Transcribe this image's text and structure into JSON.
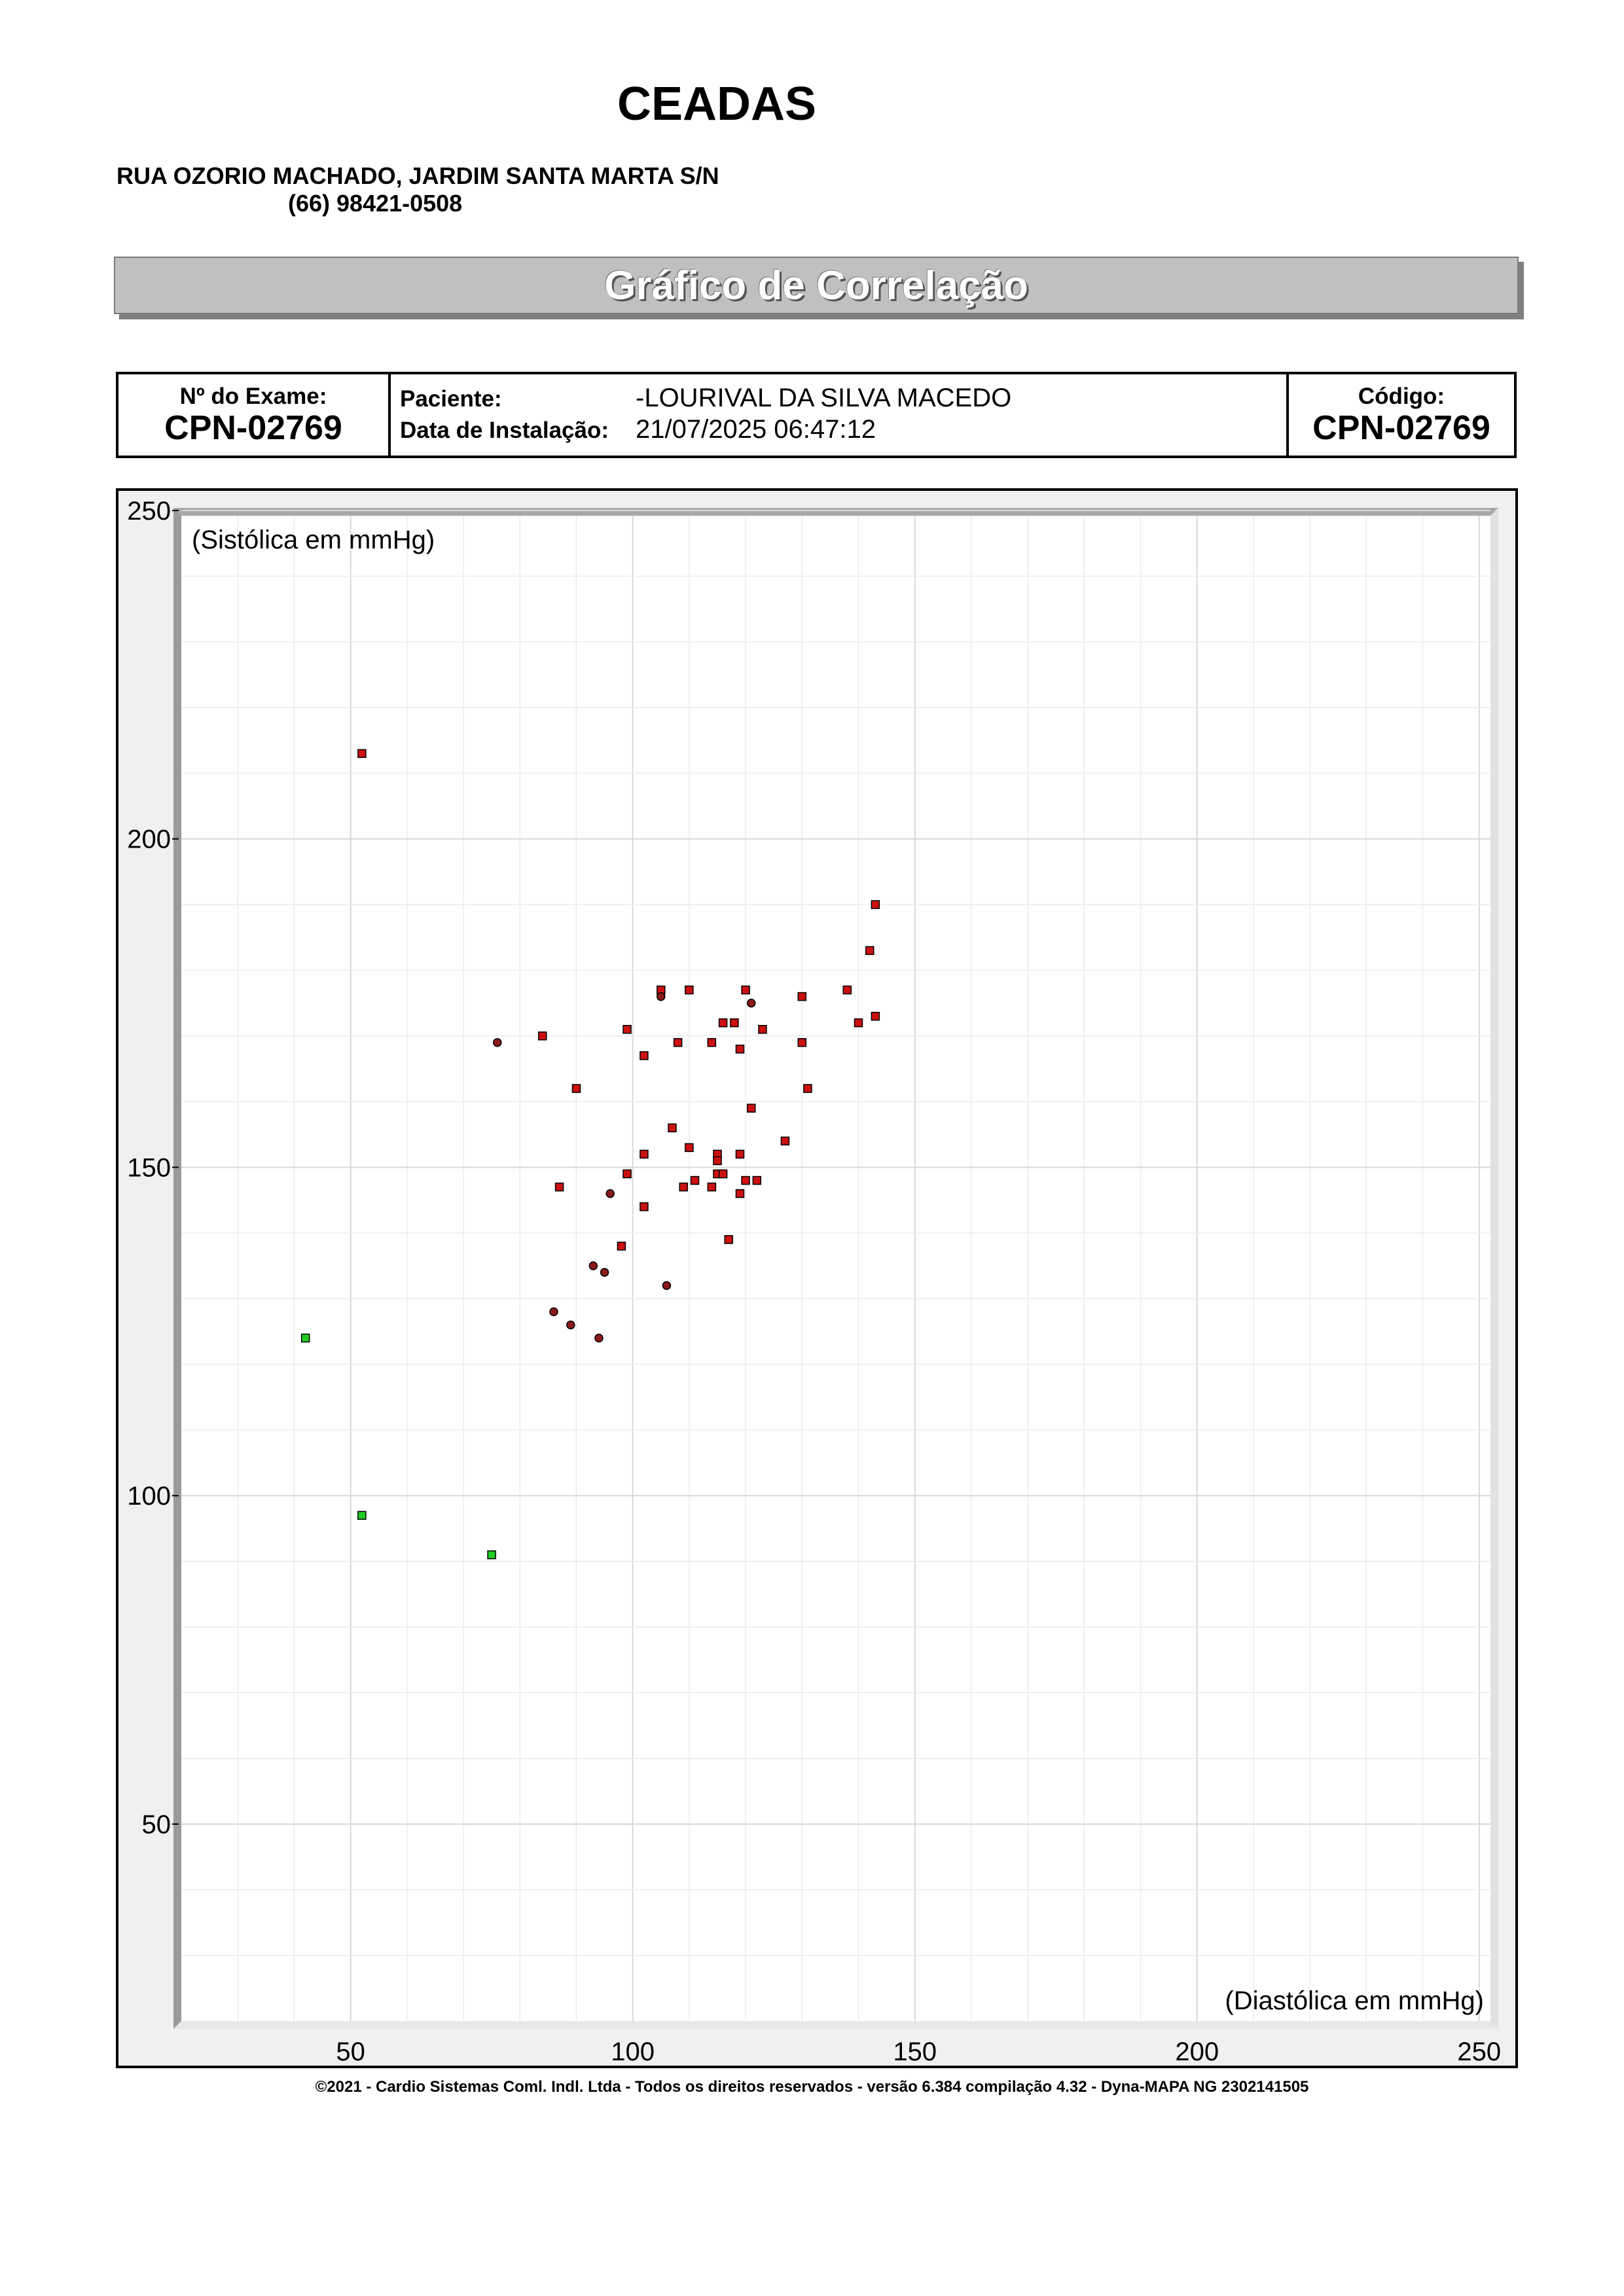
{
  "header": {
    "clinic_name": "CEADAS",
    "address": "RUA OZORIO MACHADO, JARDIM SANTA MARTA S/N",
    "phone": "(66) 98421-0508"
  },
  "title": "Gráfico de Correlação",
  "exam": {
    "exam_label": "Nº do Exame:",
    "exam_number": "CPN-02769",
    "patient_label": "Paciente:",
    "patient_name": "-LOURIVAL DA SILVA MACEDO",
    "install_label": "Data de Instalação:",
    "install_date": "21/07/2025 06:47:12",
    "code_label": "Código:",
    "code_value": "CPN-02769"
  },
  "chart_data": {
    "type": "scatter",
    "xlabel": "(Diastólica em mmHg)",
    "ylabel": "(Sistólica em mmHg)",
    "xlim": [
      20,
      252
    ],
    "ylim": [
      20,
      250
    ],
    "x_ticks": [
      50,
      100,
      150,
      200,
      250
    ],
    "y_ticks": [
      50,
      100,
      150,
      200,
      250
    ],
    "grid": true,
    "series": [
      {
        "marker": "square",
        "color": "#cc1111",
        "points": [
          [
            52,
            213
          ],
          [
            143,
            190
          ],
          [
            142,
            183
          ],
          [
            105,
            177
          ],
          [
            110,
            177
          ],
          [
            120,
            177
          ],
          [
            130,
            176
          ],
          [
            138,
            177
          ],
          [
            116,
            172
          ],
          [
            118,
            172
          ],
          [
            123,
            171
          ],
          [
            140,
            172
          ],
          [
            143,
            173
          ],
          [
            84,
            170
          ],
          [
            99,
            171
          ],
          [
            108,
            169
          ],
          [
            114,
            169
          ],
          [
            130,
            169
          ],
          [
            119,
            168
          ],
          [
            102,
            167
          ],
          [
            90,
            162
          ],
          [
            131,
            162
          ],
          [
            121,
            159
          ],
          [
            107,
            156
          ],
          [
            127,
            154
          ],
          [
            110,
            153
          ],
          [
            102,
            152
          ],
          [
            115,
            152
          ],
          [
            119,
            152
          ],
          [
            115,
            151
          ],
          [
            99,
            149
          ],
          [
            115,
            149
          ],
          [
            116,
            149
          ],
          [
            87,
            147
          ],
          [
            109,
            147
          ],
          [
            111,
            148
          ],
          [
            114,
            147
          ],
          [
            120,
            148
          ],
          [
            122,
            148
          ],
          [
            119,
            146
          ],
          [
            102,
            144
          ],
          [
            117,
            139
          ],
          [
            98,
            138
          ]
        ]
      },
      {
        "marker": "circle",
        "color": "#8b1a1a",
        "points": [
          [
            76,
            169
          ],
          [
            105,
            176
          ],
          [
            121,
            175
          ],
          [
            96,
            146
          ],
          [
            93,
            135
          ],
          [
            95,
            134
          ],
          [
            106,
            132
          ],
          [
            86,
            128
          ],
          [
            89,
            126
          ],
          [
            94,
            124
          ]
        ]
      },
      {
        "marker": "square",
        "color": "#22cc22",
        "points": [
          [
            42,
            124
          ],
          [
            52,
            97
          ],
          [
            75,
            91
          ]
        ]
      }
    ]
  },
  "footer": "©2021 - Cardio Sistemas Coml. Indl. Ltda - Todos os direitos reservados - versão 6.384 compilação 4.32 - Dyna-MAPA NG 2302141505"
}
